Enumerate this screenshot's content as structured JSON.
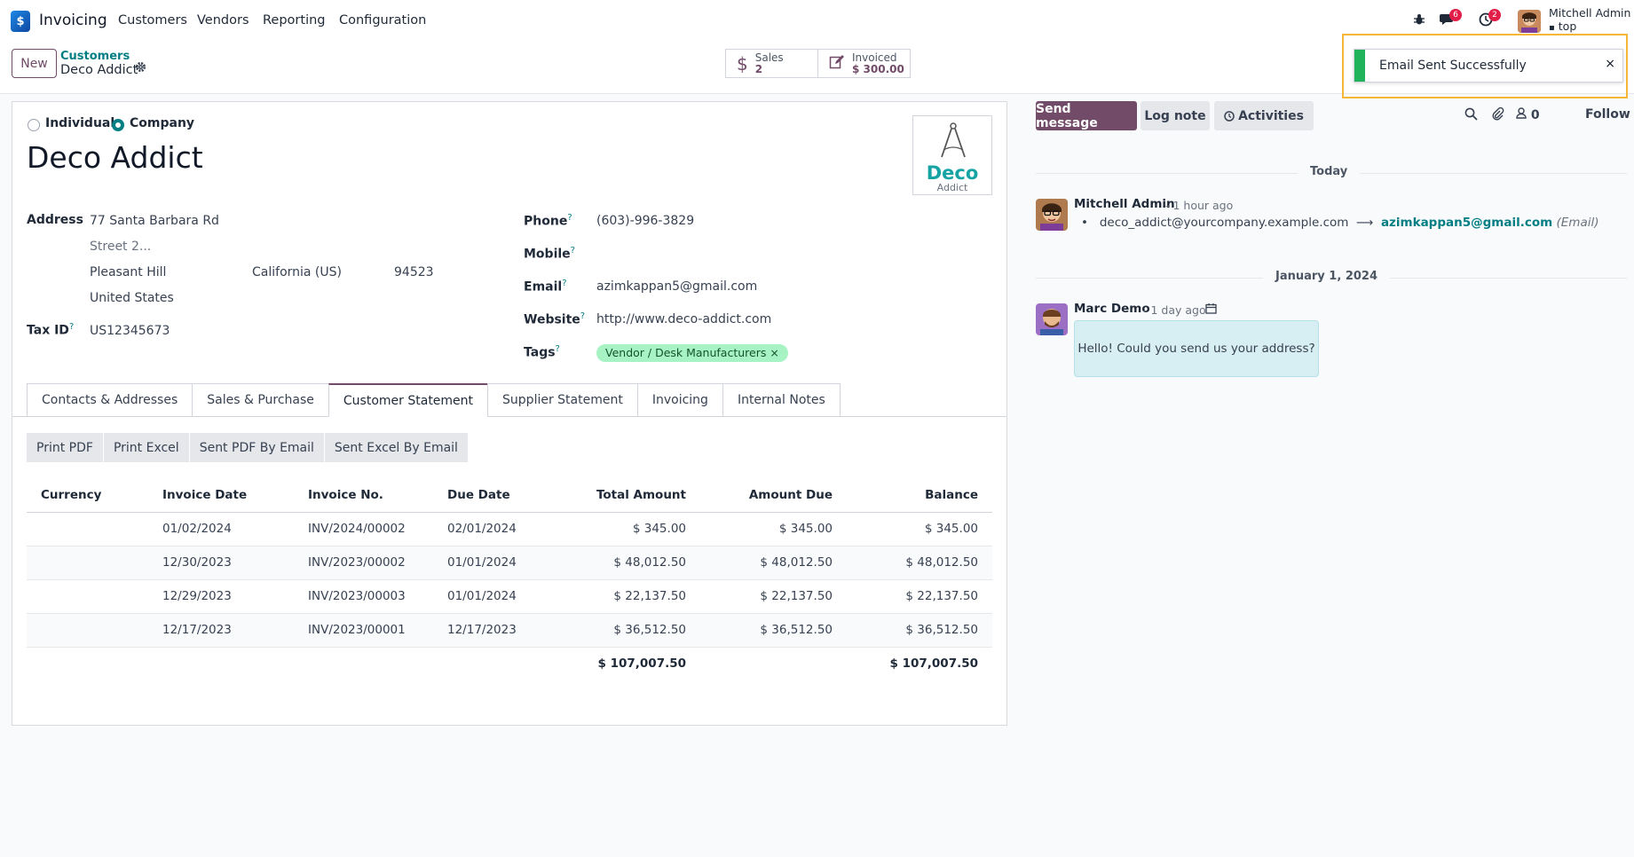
{
  "navbar": {
    "app_name": "Invoicing",
    "menu": [
      "Customers",
      "Vendors",
      "Reporting",
      "Configuration"
    ],
    "messages_badge": "6",
    "activities_badge": "2",
    "user_name": "Mitchell Admin",
    "db_name": "top"
  },
  "control": {
    "new_label": "New",
    "breadcrumb_parent": "Customers",
    "breadcrumb_current": "Deco Addict",
    "sales_label": "Sales",
    "sales_value": "2",
    "invoiced_label": "Invoiced",
    "invoiced_value": "$ 300.00"
  },
  "toast": {
    "message": "Email Sent Successfully",
    "close": "×"
  },
  "form": {
    "type_individual": "Individual",
    "type_company": "Company",
    "name": "Deco Addict",
    "logo_word": "Deco",
    "logo_sub": "Addict",
    "address_label": "Address",
    "street": "77 Santa Barbara Rd",
    "street2_placeholder": "Street 2...",
    "city": "Pleasant Hill",
    "state": "California (US)",
    "zip": "94523",
    "country": "United States",
    "taxid_label": "Tax ID",
    "taxid": "US12345673",
    "phone_label": "Phone",
    "phone": "(603)-996-3829",
    "mobile_label": "Mobile",
    "email_label": "Email",
    "email": "azimkappan5@gmail.com",
    "website_label": "Website",
    "website": "http://www.deco-addict.com",
    "tags_label": "Tags",
    "tag": "Vendor / Desk Manufacturers",
    "help_mark": "?"
  },
  "tabs": [
    "Contacts & Addresses",
    "Sales & Purchase",
    "Customer Statement",
    "Supplier Statement",
    "Invoicing",
    "Internal Notes"
  ],
  "actions": [
    "Print PDF",
    "Print Excel",
    "Sent PDF By Email",
    "Sent Excel By Email"
  ],
  "statement": {
    "headers": [
      "Currency",
      "Invoice Date",
      "Invoice No.",
      "Due Date",
      "Total Amount",
      "Amount Due",
      "Balance"
    ],
    "rows": [
      [
        "",
        "01/02/2024",
        "INV/2024/00002",
        "02/01/2024",
        "$ 345.00",
        "$ 345.00",
        "$ 345.00"
      ],
      [
        "",
        "12/30/2023",
        "INV/2023/00002",
        "01/01/2024",
        "$ 48,012.50",
        "$ 48,012.50",
        "$ 48,012.50"
      ],
      [
        "",
        "12/29/2023",
        "INV/2023/00003",
        "01/01/2024",
        "$ 22,137.50",
        "$ 22,137.50",
        "$ 22,137.50"
      ],
      [
        "",
        "12/17/2023",
        "INV/2023/00001",
        "12/17/2023",
        "$ 36,512.50",
        "$ 36,512.50",
        "$ 36,512.50"
      ]
    ],
    "total_amount": "$ 107,007.50",
    "total_balance": "$ 107,007.50"
  },
  "chatter": {
    "send_message": "Send message",
    "log_note": "Log note",
    "activities": "Activities",
    "followers_count": "0",
    "follow": "Follow",
    "sep_today": "Today",
    "msg1_author": "Mitchell Admin",
    "msg1_time": "- 1 hour ago",
    "msg1_old": "deco_addict@yourcompany.example.com",
    "msg1_new": "azimkappan5@gmail.com",
    "msg1_field": "(Email)",
    "sep_jan": "January 1, 2024",
    "msg2_author": "Marc Demo",
    "msg2_time": "- 1 day ago",
    "msg2_body": "Hello! Could you send us your address?"
  }
}
